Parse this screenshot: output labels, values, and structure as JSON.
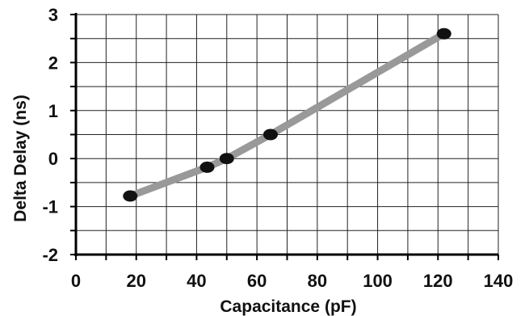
{
  "chart_data": {
    "type": "line",
    "title": "",
    "xlabel": "Capacitance (pF)",
    "ylabel": "Delta Delay  (ns)",
    "xlim": [
      0,
      140
    ],
    "ylim": [
      -2,
      3
    ],
    "x_ticks": [
      "0",
      "20",
      "40",
      "60",
      "80",
      "100",
      "120",
      "140"
    ],
    "y_ticks": [
      "3",
      "2",
      "1",
      "0",
      "-1",
      "-2"
    ],
    "grid": true,
    "legend": "none",
    "series": [
      {
        "x": [
          18,
          43.5,
          50,
          64.5,
          122
        ],
        "y": [
          -0.78,
          -0.18,
          0.0,
          0.5,
          2.6
        ],
        "line_color": "#999999",
        "marker_color": "#111111"
      }
    ]
  }
}
